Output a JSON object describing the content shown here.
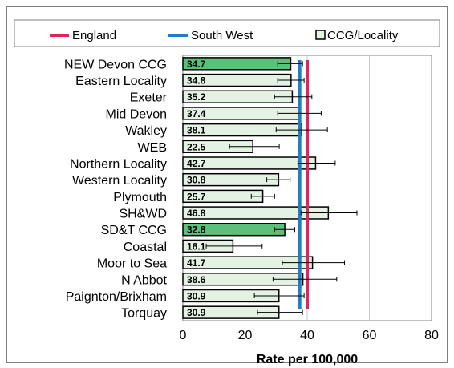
{
  "chart_data": {
    "type": "bar",
    "orientation": "horizontal",
    "categories": [
      "NEW Devon CCG",
      "Eastern Locality",
      "Exeter",
      "Mid Devon",
      "Wakley",
      "WEB",
      "Northern Locality",
      "Western Locality",
      "Plymouth",
      "SH&WD",
      "SD&T CCG",
      "Coastal",
      "Moor to Sea",
      "N Abbot",
      "Paignton/Brixham",
      "Torquay"
    ],
    "series": [
      {
        "name": "CCG/Locality",
        "values": [
          34.7,
          34.8,
          35.2,
          37.4,
          38.1,
          22.5,
          42.7,
          30.8,
          25.7,
          46.8,
          32.8,
          16.1,
          41.7,
          38.6,
          30.9,
          30.9
        ],
        "value_labels": [
          "34.7",
          "34.8",
          "35.2",
          "37.4",
          "38.1",
          "22.5",
          "42.7",
          "30.8",
          "25.7",
          "46.8",
          "32.8",
          "16.1",
          "41.7",
          "38.6",
          "30.9",
          "30.9"
        ],
        "error_low": [
          30.5,
          30.5,
          29.5,
          30.5,
          30.0,
          15.0,
          37.0,
          27.0,
          22.0,
          38.0,
          29.5,
          7.5,
          32.0,
          29.0,
          23.0,
          24.0
        ],
        "error_high": [
          38.5,
          39.0,
          41.5,
          44.5,
          46.5,
          31.0,
          49.0,
          34.5,
          29.5,
          56.0,
          36.0,
          25.5,
          52.0,
          49.5,
          39.0,
          38.5
        ],
        "highlight": [
          true,
          false,
          false,
          false,
          false,
          false,
          false,
          false,
          false,
          false,
          true,
          false,
          false,
          false,
          false,
          false
        ]
      }
    ],
    "reference_lines": [
      {
        "name": "England",
        "value": 40.0
      },
      {
        "name": "South West",
        "value": 37.6
      }
    ],
    "xlabel": "Rate per 100,000",
    "ylabel": "",
    "xlim": [
      0,
      80
    ],
    "xticks": [
      "0",
      "20",
      "40",
      "60",
      "80"
    ],
    "grid": true,
    "legend": {
      "position": "top",
      "entries": [
        "England",
        "South West",
        "CCG/Locality"
      ]
    },
    "colors": {
      "england": "#e0245e",
      "south_west": "#1f7fc4",
      "bar_fill": "#e3f2e3",
      "bar_highlight": "#5cbf7a",
      "bar_edge": "#000000",
      "grid": "#c8c8c8"
    }
  }
}
